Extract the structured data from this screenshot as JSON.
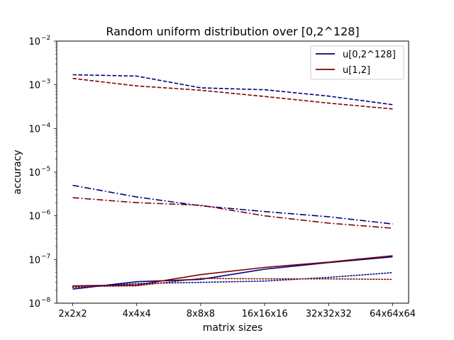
{
  "chart_data": {
    "type": "line",
    "title": "Random uniform distribution over [0,2^128]",
    "xlabel": "matrix sizes",
    "ylabel": "accuracy",
    "categories": [
      "2x2x2",
      "4x4x4",
      "8x8x8",
      "16x16x16",
      "32x32x32",
      "64x64x64"
    ],
    "yscale": "log",
    "ylim": [
      1e-08,
      0.01
    ],
    "yticks": [
      {
        "base": "10",
        "exp": "−8",
        "value": 1e-08
      },
      {
        "base": "10",
        "exp": "−7",
        "value": 1e-07
      },
      {
        "base": "10",
        "exp": "−6",
        "value": 1e-06
      },
      {
        "base": "10",
        "exp": "−5",
        "value": 1e-05
      },
      {
        "base": "10",
        "exp": "−4",
        "value": 0.0001
      },
      {
        "base": "10",
        "exp": "−3",
        "value": 0.001
      },
      {
        "base": "10",
        "exp": "−2",
        "value": 0.01
      }
    ],
    "grid": false,
    "legend_position": "top-right",
    "legend": [
      {
        "label": "u[0,2^128]",
        "color": "#00007f"
      },
      {
        "label": "u[1,2]",
        "color": "#7f0000"
      }
    ],
    "series": [
      {
        "group": "u[0,2^128]",
        "color": "#00007f",
        "linestyle": "dashed",
        "values": [
          0.0017,
          0.00158,
          0.00085,
          0.00077,
          0.00055,
          0.00035
        ]
      },
      {
        "group": "u[1,2]",
        "color": "#7f0000",
        "linestyle": "dashed",
        "values": [
          0.0014,
          0.00094,
          0.00075,
          0.00054,
          0.00038,
          0.00028
        ]
      },
      {
        "group": "u[0,2^128]",
        "color": "#00007f",
        "linestyle": "dashdot",
        "values": [
          5e-06,
          2.7e-06,
          1.7e-06,
          1.25e-06,
          9.5e-07,
          6.5e-07
        ]
      },
      {
        "group": "u[1,2]",
        "color": "#7f0000",
        "linestyle": "dashdot",
        "values": [
          2.6e-06,
          2e-06,
          1.75e-06,
          1e-06,
          6.8e-07,
          5.2e-07
        ]
      },
      {
        "group": "u[0,2^128]",
        "color": "#00007f",
        "linestyle": "solid",
        "values": [
          2.1e-08,
          3.1e-08,
          3.5e-08,
          6e-08,
          8.5e-08,
          1.15e-07
        ]
      },
      {
        "group": "u[1,2]",
        "color": "#7f0000",
        "linestyle": "solid",
        "values": [
          2.5e-08,
          2.6e-08,
          4.5e-08,
          6.6e-08,
          8.7e-08,
          1.22e-07
        ]
      },
      {
        "group": "u[0,2^128]",
        "color": "#00007f",
        "linestyle": "dotted",
        "values": [
          2.3e-08,
          2.8e-08,
          3e-08,
          3.2e-08,
          3.9e-08,
          5e-08
        ]
      },
      {
        "group": "u[1,2]",
        "color": "#7f0000",
        "linestyle": "dotted",
        "values": [
          2.4e-08,
          2.5e-08,
          3.7e-08,
          3.6e-08,
          3.6e-08,
          3.5e-08
        ]
      }
    ]
  }
}
